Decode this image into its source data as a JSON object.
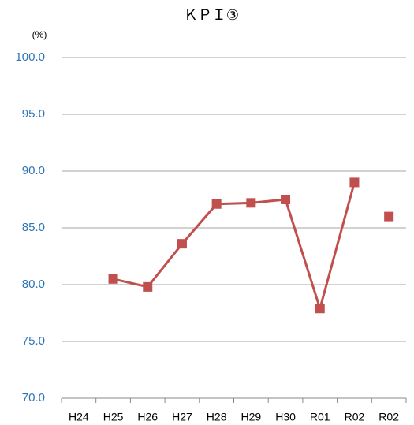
{
  "chart_data": {
    "type": "line",
    "title": "ＫＰＩ③",
    "y_unit_label": "(%)",
    "categories": [
      "H24",
      "H25",
      "H26",
      "H27",
      "H28",
      "H29",
      "H30",
      "R01",
      "R02",
      "R02"
    ],
    "series": [
      {
        "color": "#c0504d",
        "connect": true,
        "values": [
          null,
          80.5,
          79.8,
          83.6,
          87.1,
          87.2,
          87.5,
          77.9,
          89.0,
          null
        ]
      },
      {
        "color": "#c0504d",
        "connect": false,
        "values": [
          null,
          null,
          null,
          null,
          null,
          null,
          null,
          null,
          null,
          86.0
        ]
      }
    ],
    "ylim": [
      70,
      100
    ],
    "yticks": [
      {
        "value": 70,
        "label": "70.0"
      },
      {
        "value": 75,
        "label": "75.0"
      },
      {
        "value": 80,
        "label": "80.0"
      },
      {
        "value": 85,
        "label": "85.0"
      },
      {
        "value": 90,
        "label": "90.0"
      },
      {
        "value": 95,
        "label": "95.0"
      },
      {
        "value": 100,
        "label": "100.0"
      }
    ],
    "grid": true
  }
}
